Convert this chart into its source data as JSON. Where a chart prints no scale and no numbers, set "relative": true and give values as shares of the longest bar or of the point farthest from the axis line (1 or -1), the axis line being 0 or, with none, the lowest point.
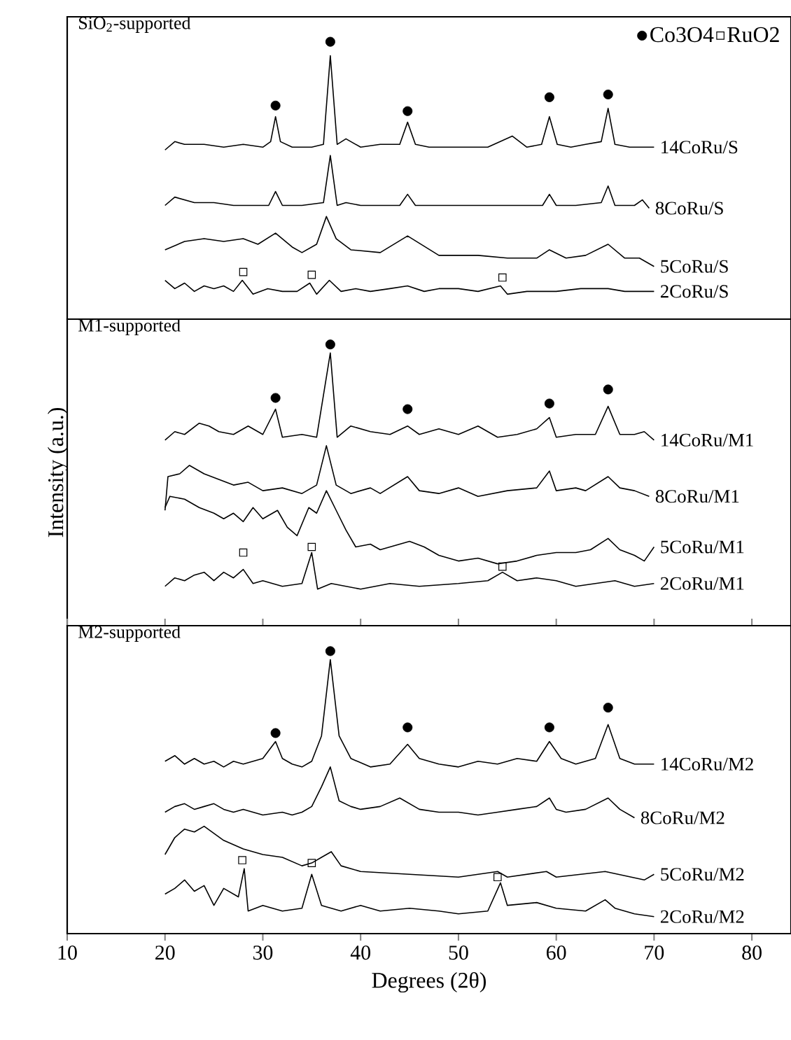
{
  "chart_data": [
    {
      "type": "line",
      "title": "SiO$_{2}$-supported",
      "relative": true,
      "xlim": [
        10,
        84
      ],
      "xticks": [
        10,
        20,
        30,
        40,
        50,
        60,
        70,
        80
      ],
      "tick_labels": false,
      "legend": "top right",
      "series": [
        {
          "name": "14CoRu/S",
          "color": "#000000",
          "x": [
            20,
            21,
            22,
            24,
            26,
            28,
            30,
            30.8,
            31.3,
            31.8,
            33,
            35,
            36.2,
            36.9,
            37.6,
            38.5,
            40,
            42,
            44,
            44.8,
            45.6,
            47,
            50,
            53,
            55.5,
            57,
            58.5,
            59.3,
            60.1,
            61.5,
            63,
            64.6,
            65.3,
            66,
            67.5,
            69,
            70
          ],
          "values": [
            0.61,
            0.64,
            0.63,
            0.63,
            0.62,
            0.63,
            0.62,
            0.64,
            0.73,
            0.64,
            0.62,
            0.62,
            0.63,
            0.95,
            0.63,
            0.65,
            0.62,
            0.63,
            0.63,
            0.71,
            0.63,
            0.62,
            0.62,
            0.62,
            0.66,
            0.62,
            0.63,
            0.73,
            0.63,
            0.62,
            0.63,
            0.64,
            0.76,
            0.63,
            0.62,
            0.62,
            0.62
          ]
        },
        {
          "name": "8CoRu/S",
          "color": "#000000",
          "x": [
            20,
            21,
            23,
            25,
            27,
            29,
            30.6,
            31.3,
            32,
            34,
            36.2,
            36.9,
            37.6,
            38.5,
            40,
            42,
            44,
            44.8,
            45.6,
            48,
            52,
            56,
            58.6,
            59.3,
            60,
            62,
            64.6,
            65.3,
            66,
            68,
            68.8,
            69.5
          ],
          "values": [
            0.41,
            0.44,
            0.42,
            0.42,
            0.41,
            0.41,
            0.41,
            0.46,
            0.41,
            0.41,
            0.42,
            0.59,
            0.41,
            0.42,
            0.41,
            0.41,
            0.41,
            0.45,
            0.41,
            0.41,
            0.41,
            0.41,
            0.41,
            0.45,
            0.41,
            0.41,
            0.42,
            0.48,
            0.41,
            0.41,
            0.43,
            0.4
          ]
        },
        {
          "name": "5CoRu/S",
          "color": "#000000",
          "x": [
            20,
            22,
            24,
            26,
            28,
            29.5,
            31.3,
            33,
            34,
            35.5,
            36.5,
            37.5,
            39,
            42,
            44.8,
            48,
            52,
            55,
            58,
            59.3,
            61,
            63,
            65.3,
            67,
            68.5,
            70
          ],
          "values": [
            0.25,
            0.28,
            0.29,
            0.28,
            0.29,
            0.27,
            0.31,
            0.26,
            0.24,
            0.27,
            0.37,
            0.29,
            0.25,
            0.24,
            0.3,
            0.23,
            0.23,
            0.22,
            0.22,
            0.25,
            0.22,
            0.23,
            0.27,
            0.22,
            0.22,
            0.19
          ]
        },
        {
          "name": "2CoRu/S",
          "color": "#000000",
          "x": [
            20,
            21,
            22,
            23,
            24,
            25,
            26,
            27,
            27.9,
            29,
            30.5,
            32,
            33.5,
            34.8,
            35.5,
            36.8,
            38,
            39.5,
            41,
            43,
            44.8,
            46.5,
            48,
            50,
            52,
            54.3,
            55,
            57,
            60,
            62.5,
            65.3,
            67,
            70
          ],
          "values": [
            0.14,
            0.11,
            0.13,
            0.1,
            0.12,
            0.11,
            0.12,
            0.1,
            0.14,
            0.09,
            0.11,
            0.1,
            0.1,
            0.13,
            0.09,
            0.14,
            0.1,
            0.11,
            0.1,
            0.11,
            0.12,
            0.1,
            0.11,
            0.11,
            0.1,
            0.12,
            0.09,
            0.1,
            0.1,
            0.11,
            0.11,
            0.1,
            0.1
          ]
        },
        {
          "type": "scatter",
          "name": "Co3O4",
          "color": "#000000",
          "marker": "circle",
          "x": [
            31.3,
            36.9,
            44.8,
            59.3,
            65.3
          ],
          "values": [
            0.77,
            1.0,
            0.75,
            0.8,
            0.81
          ]
        },
        {
          "type": "scatter",
          "name": "RuO2",
          "color": "#000000",
          "marker": "square",
          "x": [
            28,
            35,
            54.5
          ],
          "values": [
            0.17,
            0.16,
            0.15
          ]
        }
      ]
    },
    {
      "type": "line",
      "title": "M1-supported",
      "ylabel": "Intensity (a.u.)",
      "relative": true,
      "xlim": [
        10,
        84
      ],
      "xticks": [
        10,
        20,
        30,
        40,
        50,
        60,
        70,
        80
      ],
      "tick_labels": false,
      "series": [
        {
          "name": "14CoRu/M1",
          "color": "#000000",
          "x": [
            20,
            21,
            22,
            23.5,
            24.5,
            25.5,
            27,
            28.5,
            30,
            31.3,
            32,
            34,
            35.5,
            36.9,
            37.6,
            39,
            41,
            43,
            44.8,
            46,
            48,
            50,
            52,
            54,
            56,
            58,
            59.3,
            60,
            62,
            64,
            65.3,
            66.5,
            68,
            69,
            70
          ],
          "values": [
            0.66,
            0.69,
            0.68,
            0.72,
            0.71,
            0.69,
            0.68,
            0.71,
            0.68,
            0.77,
            0.67,
            0.68,
            0.67,
            0.97,
            0.67,
            0.71,
            0.69,
            0.68,
            0.71,
            0.68,
            0.7,
            0.68,
            0.71,
            0.67,
            0.68,
            0.7,
            0.74,
            0.67,
            0.68,
            0.68,
            0.78,
            0.68,
            0.68,
            0.69,
            0.66
          ]
        },
        {
          "name": "8CoRu/M1",
          "color": "#000000",
          "x": [
            20,
            20.3,
            21.5,
            22.5,
            24,
            25.5,
            27,
            28.5,
            30,
            32,
            34,
            35.5,
            36.5,
            37.5,
            39,
            41,
            42,
            44.8,
            46,
            48,
            50,
            52,
            55,
            58,
            59.3,
            60,
            62,
            63,
            65.3,
            66.5,
            68,
            69.5
          ],
          "values": [
            0.41,
            0.53,
            0.54,
            0.57,
            0.54,
            0.52,
            0.5,
            0.51,
            0.48,
            0.49,
            0.47,
            0.5,
            0.64,
            0.5,
            0.47,
            0.49,
            0.47,
            0.53,
            0.48,
            0.47,
            0.49,
            0.46,
            0.48,
            0.49,
            0.55,
            0.48,
            0.49,
            0.48,
            0.53,
            0.49,
            0.48,
            0.46
          ]
        },
        {
          "name": "5CoRu/M1",
          "color": "#000000",
          "x": [
            20,
            20.5,
            22,
            23.5,
            25,
            26,
            27,
            28,
            29,
            30,
            31.5,
            32.5,
            33.5,
            34.7,
            35.5,
            36.5,
            37.5,
            38.5,
            39.5,
            41,
            42,
            43,
            44,
            45,
            46.5,
            48,
            50,
            52,
            54,
            56,
            58,
            60,
            62,
            63.5,
            65.3,
            66.5,
            68,
            69,
            70
          ],
          "values": [
            0.42,
            0.46,
            0.45,
            0.42,
            0.4,
            0.38,
            0.4,
            0.37,
            0.42,
            0.38,
            0.41,
            0.35,
            0.32,
            0.42,
            0.4,
            0.48,
            0.41,
            0.34,
            0.28,
            0.29,
            0.27,
            0.28,
            0.29,
            0.3,
            0.28,
            0.25,
            0.23,
            0.24,
            0.22,
            0.23,
            0.25,
            0.26,
            0.26,
            0.27,
            0.31,
            0.27,
            0.25,
            0.23,
            0.28
          ]
        },
        {
          "name": "2CoRu/M1",
          "color": "#000000",
          "x": [
            20,
            21,
            22,
            23,
            24,
            25,
            26,
            27,
            28,
            29,
            30,
            32,
            34,
            35,
            35.6,
            37,
            40,
            43,
            46,
            50,
            53,
            54.5,
            56,
            58,
            60,
            62,
            64,
            66,
            68,
            70
          ],
          "values": [
            0.14,
            0.17,
            0.16,
            0.18,
            0.19,
            0.16,
            0.19,
            0.17,
            0.2,
            0.15,
            0.16,
            0.14,
            0.15,
            0.26,
            0.13,
            0.15,
            0.13,
            0.15,
            0.14,
            0.15,
            0.16,
            0.19,
            0.16,
            0.17,
            0.16,
            0.14,
            0.15,
            0.16,
            0.14,
            0.15
          ]
        },
        {
          "type": "scatter",
          "color": "#000000",
          "marker": "circle",
          "x": [
            31.3,
            36.9,
            44.8,
            59.3,
            65.3
          ],
          "values": [
            0.81,
            1.0,
            0.77,
            0.79,
            0.84
          ]
        },
        {
          "type": "scatter",
          "color": "#000000",
          "marker": "square",
          "x": [
            28,
            35,
            54.5
          ],
          "values": [
            0.26,
            0.28,
            0.21
          ]
        }
      ]
    },
    {
      "type": "line",
      "title": "M2-supported",
      "xlabel": "Degrees (2θ)",
      "relative": true,
      "xlim": [
        10,
        84
      ],
      "xticks": [
        10,
        20,
        30,
        40,
        50,
        60,
        70,
        80
      ],
      "tick_labels": "x",
      "series": [
        {
          "name": "14CoRu/M2",
          "color": "#000000",
          "x": [
            20,
            21,
            22,
            23,
            24,
            25,
            26,
            27,
            28,
            29,
            30,
            31.3,
            32,
            33,
            34,
            35,
            36,
            36.9,
            37.8,
            39,
            41,
            43,
            44.8,
            46,
            48,
            50,
            52,
            54,
            56,
            58,
            59.3,
            60.5,
            62,
            64,
            65.3,
            66.5,
            68,
            70
          ],
          "values": [
            0.61,
            0.63,
            0.6,
            0.62,
            0.6,
            0.61,
            0.59,
            0.61,
            0.6,
            0.61,
            0.62,
            0.68,
            0.62,
            0.6,
            0.59,
            0.61,
            0.7,
            0.97,
            0.7,
            0.62,
            0.59,
            0.6,
            0.67,
            0.62,
            0.6,
            0.59,
            0.61,
            0.6,
            0.62,
            0.61,
            0.68,
            0.62,
            0.6,
            0.62,
            0.74,
            0.62,
            0.6,
            0.6
          ]
        },
        {
          "name": "8CoRu/M2",
          "color": "#000000",
          "x": [
            20,
            21,
            22,
            23,
            24,
            25,
            26,
            27,
            28,
            30,
            32,
            33,
            34,
            35,
            36,
            36.9,
            37.8,
            39,
            40,
            42,
            44,
            46,
            48,
            50,
            52,
            54,
            56,
            58,
            59.3,
            60,
            61,
            63,
            65.3,
            66.5,
            68
          ],
          "values": [
            0.43,
            0.45,
            0.46,
            0.44,
            0.45,
            0.46,
            0.44,
            0.43,
            0.44,
            0.42,
            0.43,
            0.42,
            0.43,
            0.45,
            0.52,
            0.59,
            0.47,
            0.45,
            0.44,
            0.45,
            0.48,
            0.44,
            0.43,
            0.43,
            0.42,
            0.43,
            0.44,
            0.45,
            0.48,
            0.44,
            0.43,
            0.44,
            0.48,
            0.44,
            0.41
          ]
        },
        {
          "name": "5CoRu/M2",
          "color": "#000000",
          "x": [
            20,
            21,
            22,
            23,
            24,
            26,
            28,
            30,
            32,
            34,
            35,
            36,
            37,
            38,
            40,
            45,
            50,
            54,
            55,
            59,
            60,
            65,
            69,
            70
          ],
          "values": [
            0.28,
            0.34,
            0.37,
            0.36,
            0.38,
            0.33,
            0.3,
            0.28,
            0.27,
            0.24,
            0.25,
            0.27,
            0.29,
            0.24,
            0.22,
            0.21,
            0.2,
            0.22,
            0.2,
            0.22,
            0.2,
            0.22,
            0.19,
            0.21
          ]
        },
        {
          "name": "2CoRu/M2",
          "color": "#000000",
          "x": [
            20,
            21,
            22,
            23,
            24,
            25,
            26,
            27.5,
            28.1,
            28.5,
            30,
            32,
            34,
            35,
            36,
            38,
            40,
            42,
            45,
            48,
            50,
            53,
            54.3,
            55,
            58,
            60,
            63,
            65,
            66,
            68,
            70
          ],
          "values": [
            0.14,
            0.16,
            0.19,
            0.15,
            0.17,
            0.1,
            0.16,
            0.13,
            0.23,
            0.08,
            0.1,
            0.08,
            0.09,
            0.21,
            0.1,
            0.08,
            0.1,
            0.08,
            0.09,
            0.08,
            0.07,
            0.08,
            0.18,
            0.1,
            0.11,
            0.09,
            0.08,
            0.12,
            0.09,
            0.07,
            0.06
          ]
        },
        {
          "type": "scatter",
          "color": "#000000",
          "marker": "circle",
          "x": [
            31.3,
            36.9,
            44.8,
            59.3,
            65.3
          ],
          "values": [
            0.71,
            1.0,
            0.73,
            0.73,
            0.8
          ]
        },
        {
          "type": "scatter",
          "color": "#000000",
          "marker": "square",
          "x": [
            27.9,
            35,
            54
          ],
          "values": [
            0.26,
            0.25,
            0.2
          ]
        }
      ]
    }
  ]
}
